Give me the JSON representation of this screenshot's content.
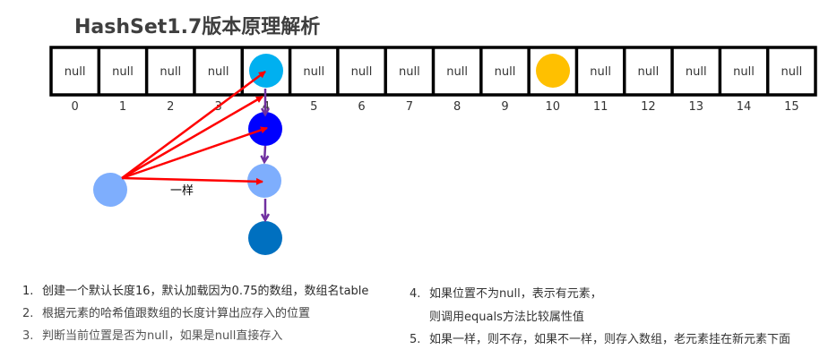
{
  "title": "HashSet1.7版本原理解析",
  "array": {
    "cells": [
      "null",
      "null",
      "null",
      "null",
      "",
      "null",
      "null",
      "null",
      "null",
      "null",
      "",
      "null",
      "null",
      "null",
      "null",
      "null"
    ],
    "indices": [
      "0",
      "1",
      "2",
      "3",
      "4",
      "5",
      "6",
      "7",
      "8",
      "9",
      "10",
      "11",
      "12",
      "13",
      "14",
      "15"
    ]
  },
  "colors": {
    "slot4_node": "#00b0f0",
    "slot10_node": "#ffc000",
    "chain_node_2": "#0000ff",
    "chain_node_3": "#7eaefd",
    "chain_node_4": "#0070c0",
    "new_element": "#7eaefd",
    "compare_arrow": "#ff0000",
    "chain_arrow": "#7030a0"
  },
  "same_label": "一样",
  "steps": [
    {
      "num": "1.",
      "text": "创建一个默认长度16，默认加载因为0.75的数组，数组名table"
    },
    {
      "num": "2.",
      "text": "根据元素的哈希值跟数组的长度计算出应存入的位置"
    },
    {
      "num": "3.",
      "text": "判断当前位置是否为null，如果是null直接存入"
    },
    {
      "num": "4.",
      "text": "如果位置不为null，表示有元素，"
    },
    {
      "num": "",
      "text": "则调用equals方法比较属性值"
    },
    {
      "num": "5.",
      "text": "如果一样，则不存，如果不一样，则存入数组，老元素挂在新元素下面"
    }
  ]
}
